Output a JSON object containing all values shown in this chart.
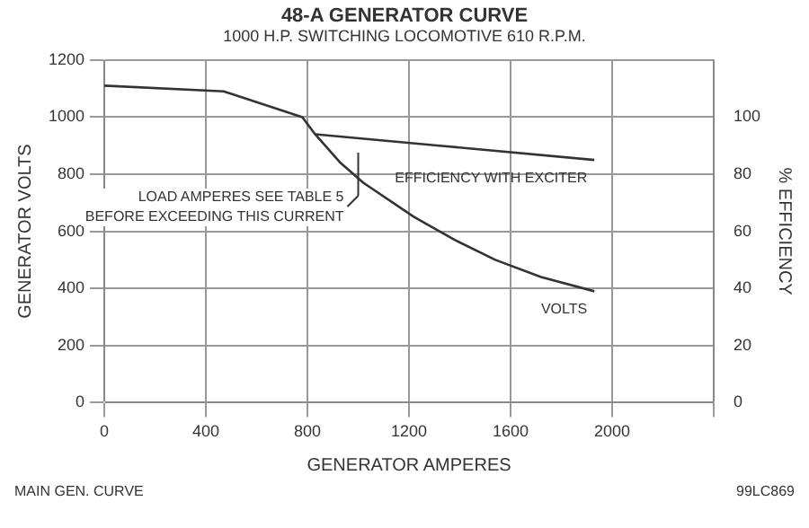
{
  "chart_data": {
    "type": "line",
    "title": "48-A GENERATOR CURVE",
    "subtitle": "1000 H.P. SWITCHING LOCOMOTIVE 610 R.P.M.",
    "xlabel": "GENERATOR AMPERES",
    "ylabel": "GENERATOR VOLTS",
    "y2label": "% EFFICIENCY",
    "series": [
      {
        "name": "VOLTS",
        "color": "#333333",
        "x": [
          0,
          470,
          780,
          830,
          930,
          1020,
          1220,
          1380,
          1540,
          1720,
          1930
        ],
        "values": [
          1110,
          1090,
          1000,
          940,
          840,
          770,
          650,
          570,
          500,
          440,
          390
        ]
      },
      {
        "name": "EFFICIENCY WITH EXCITER",
        "color": "#333333",
        "axis": "y2",
        "x": [
          830,
          1320,
          1930
        ],
        "values": [
          94,
          90,
          85
        ]
      }
    ],
    "xlim": [
      0,
      2400
    ],
    "xticks": [
      0,
      400,
      800,
      1200,
      1600,
      2000,
      {
        "value": 2400,
        "label": null
      }
    ],
    "ylim": [
      0,
      1200
    ],
    "yticks": [
      0,
      200,
      400,
      600,
      800,
      1000,
      1200
    ],
    "y2lim": [
      0,
      120
    ],
    "y2ticks": [
      0,
      20,
      40,
      60,
      80,
      100
    ],
    "annotations": [
      {
        "text": "LOAD AMPERES SEE TABLE 5 BEFORE EXCEEDING THIS CURRENT",
        "x": 1000,
        "y": 800
      },
      "MAIN GEN. CURVE",
      "99LC869"
    ],
    "grid": true,
    "legend": false,
    "marker": "none",
    "line_style": "solid"
  }
}
